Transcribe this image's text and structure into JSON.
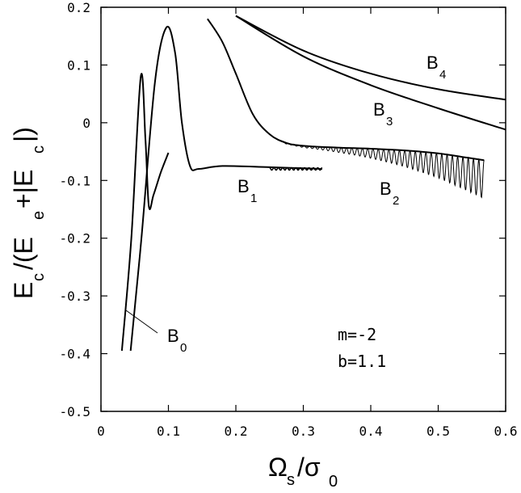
{
  "chart_data": {
    "type": "line",
    "title": "",
    "xlabel": "Ωs/σ0",
    "ylabel": "Ec/(Ee+|Ec|)",
    "xlim": [
      0,
      0.6
    ],
    "ylim": [
      -0.5,
      0.2
    ],
    "x_ticks": [
      "0",
      "0.1",
      "0.2",
      "0.3",
      "0.4",
      "0.5",
      "0.6"
    ],
    "y_ticks": [
      "0.2",
      "0.1",
      "0",
      "-0.1",
      "-0.2",
      "-0.3",
      "-0.4",
      "-0.5"
    ],
    "grid": false,
    "legend": "none",
    "annotations": [
      "m=-2",
      "b=1.1"
    ],
    "series": [
      {
        "name": "B0",
        "x": [
          0.031,
          0.045,
          0.059,
          0.066,
          0.071,
          0.078,
          0.089,
          0.1
        ],
        "y": [
          -0.395,
          -0.2,
          0.08,
          -0.03,
          -0.145,
          -0.125,
          -0.085,
          -0.052
        ]
      },
      {
        "name": "B1",
        "x": [
          0.044,
          0.06,
          0.08,
          0.097,
          0.11,
          0.12,
          0.132,
          0.145,
          0.18,
          0.25,
          0.328
        ],
        "y": [
          -0.395,
          -0.2,
          0.07,
          0.165,
          0.12,
          0.0,
          -0.075,
          -0.08,
          -0.075,
          -0.077,
          -0.08
        ]
      },
      {
        "name": "B2",
        "x": [
          0.158,
          0.18,
          0.2,
          0.225,
          0.25,
          0.275,
          0.3,
          0.35,
          0.4,
          0.45,
          0.5,
          0.54,
          0.568
        ],
        "y": [
          0.18,
          0.14,
          0.085,
          0.015,
          -0.02,
          -0.035,
          -0.04,
          -0.043,
          -0.045,
          -0.048,
          -0.053,
          -0.06,
          -0.065
        ]
      },
      {
        "name": "B3",
        "x": [
          0.2,
          0.3,
          0.4,
          0.5,
          0.6
        ],
        "y": [
          0.185,
          0.115,
          0.065,
          0.025,
          -0.012
        ]
      },
      {
        "name": "B4",
        "x": [
          0.2,
          0.3,
          0.4,
          0.5,
          0.6
        ],
        "y": [
          0.185,
          0.125,
          0.085,
          0.058,
          0.04
        ]
      }
    ],
    "curve_labels": [
      {
        "series": "B0",
        "letter": "B",
        "sub": "0"
      },
      {
        "series": "B1",
        "letter": "B",
        "sub": "1"
      },
      {
        "series": "B2",
        "letter": "B",
        "sub": "2"
      },
      {
        "series": "B3",
        "letter": "B",
        "sub": "3"
      },
      {
        "series": "B4",
        "letter": "B",
        "sub": "4"
      }
    ]
  }
}
